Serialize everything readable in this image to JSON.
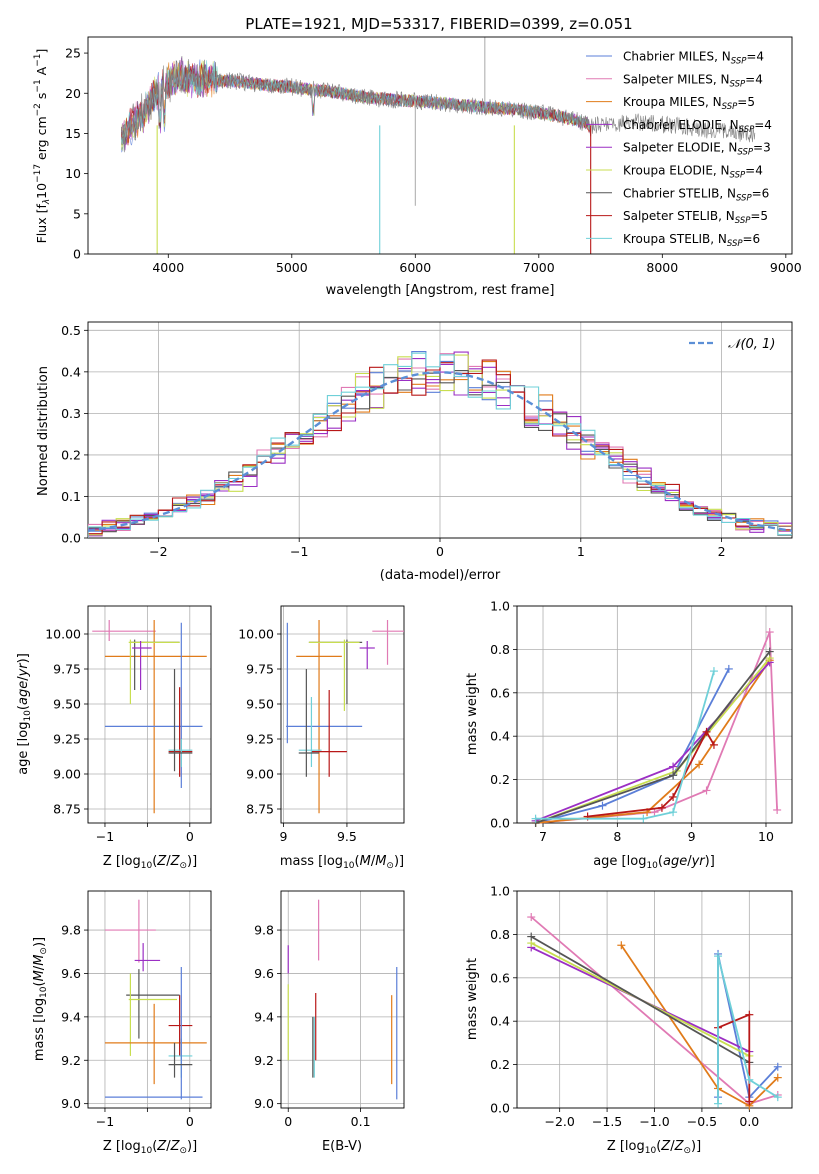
{
  "colors": {
    "Chabrier MILES": "#5b7fd8",
    "Salpeter MILES": "#e07ab4",
    "Kroupa MILES": "#e07b1a",
    "Chabrier ELODIE": "#9b2fc4",
    "Salpeter ELODIE": "#9b2fc4",
    "Kroupa ELODIE": "#c8de50",
    "Chabrier STELIB": "#555555",
    "Salpeter STELIB": "#b81818",
    "Kroupa STELIB": "#6fd0d8",
    "normal": "#5b8fd6"
  },
  "chart_data": [
    {
      "id": "spectrum",
      "type": "line",
      "title": "PLATE=1921, MJD=53317, FIBERID=0399, z=0.051",
      "xlabel": "wavelength [Angstrom, rest frame]",
      "ylabel": "Flux [fλ 10⁻¹⁷ erg cm⁻² s⁻¹ A⁻¹]",
      "xlim": [
        3350,
        9050
      ],
      "ylim": [
        0,
        27
      ],
      "xticks": [
        4000,
        5000,
        6000,
        7000,
        8000,
        9000
      ],
      "yticks": [
        0,
        5,
        10,
        15,
        20,
        25
      ],
      "grid": false,
      "legend_position": "top-right",
      "series": [
        {
          "name": "Chabrier MILES, N_SSP=4",
          "key": "Chabrier MILES"
        },
        {
          "name": "Salpeter MILES, N_SSP=4",
          "key": "Salpeter MILES"
        },
        {
          "name": "Kroupa MILES, N_SSP=5",
          "key": "Kroupa MILES"
        },
        {
          "name": "Chabrier ELODIE, N_SSP=4",
          "key": "Chabrier ELODIE"
        },
        {
          "name": "Salpeter ELODIE, N_SSP=3",
          "key": "Salpeter ELODIE"
        },
        {
          "name": "Kroupa ELODIE, N_SSP=4",
          "key": "Kroupa ELODIE"
        },
        {
          "name": "Chabrier STELIB, N_SSP=6",
          "key": "Chabrier STELIB"
        },
        {
          "name": "Salpeter STELIB, N_SSP=5",
          "key": "Salpeter STELIB"
        },
        {
          "name": "Kroupa STELIB, N_SSP=6",
          "key": "Kroupa STELIB"
        }
      ],
      "continuum": {
        "x": [
          3620,
          3700,
          3800,
          3900,
          4000,
          4100,
          4200,
          4400,
          4600,
          4800,
          5000,
          5200,
          5400,
          5600,
          5800,
          6000,
          6200,
          6400,
          6600,
          6800,
          7000,
          7200,
          7400,
          7420
        ],
        "y": [
          14.5,
          16.0,
          17.5,
          20.0,
          21.5,
          22.0,
          21.8,
          21.6,
          21.4,
          21.0,
          20.8,
          20.4,
          20.0,
          19.5,
          19.2,
          19.0,
          18.8,
          18.5,
          18.2,
          18.0,
          17.6,
          17.0,
          16.2,
          15.2
        ]
      },
      "data_extension": {
        "x": [
          7420,
          7800,
          8200,
          8600,
          8750
        ],
        "y": [
          16.0,
          16.4,
          15.8,
          15.0,
          14.8
        ]
      },
      "drops": [
        {
          "x": 3910,
          "y": 0,
          "key": "Kroupa ELODIE"
        },
        {
          "x": 5712,
          "y": 0,
          "key": "Kroupa STELIB"
        },
        {
          "x": 6802,
          "y": 0,
          "key": "Kroupa ELODIE"
        },
        {
          "x": 7420,
          "y": 0,
          "key": "Salpeter STELIB"
        }
      ],
      "spikes": [
        {
          "x": 6000,
          "y": 6
        },
        {
          "x": 6563,
          "y": 27
        }
      ]
    },
    {
      "id": "residuals",
      "type": "line",
      "xlabel": "(data-model)/error",
      "ylabel": "Normed distribution",
      "xlim": [
        -2.5,
        2.5
      ],
      "ylim": [
        0,
        0.52
      ],
      "xticks": [
        -2,
        -1,
        0,
        1,
        2
      ],
      "yticks": [
        0.0,
        0.1,
        0.2,
        0.3,
        0.4,
        0.5
      ],
      "grid": true,
      "legend_position": "top-right",
      "normal_label": "𝒩(0, 1)",
      "hist_bins": [
        -2.5,
        2.5,
        50
      ]
    },
    {
      "id": "age-vs-z",
      "type": "scatter",
      "xlabel": "Z [log₁₀(Z/Z⊙)]",
      "ylabel": "age  [log₁₀(age/yr)]",
      "xlim": [
        -1.2,
        0.25
      ],
      "ylim": [
        8.65,
        10.2
      ],
      "xticks": [
        -1,
        -0.5,
        0
      ],
      "xticklabels": [
        "−1",
        "",
        "0"
      ],
      "yticks": [
        8.75,
        9.0,
        9.25,
        9.5,
        9.75,
        10.0
      ],
      "grid": true
    },
    {
      "id": "age-vs-mass",
      "type": "scatter",
      "xlabel": "mass [log₁₀(M/M⊙)]",
      "xlim": [
        8.98,
        9.95
      ],
      "ylim": [
        8.65,
        10.2
      ],
      "xticks": [
        9.0,
        9.5
      ],
      "yticks": [
        8.75,
        9.0,
        9.25,
        9.5,
        9.75,
        10.0
      ],
      "grid": true
    },
    {
      "id": "weight-vs-age",
      "type": "line",
      "xlabel": "age  [log₁₀(age/yr)]",
      "ylabel": "mass weight",
      "xlim": [
        6.65,
        10.35
      ],
      "ylim": [
        0,
        1.0
      ],
      "xticks": [
        7,
        8,
        9,
        10
      ],
      "yticks": [
        0.0,
        0.2,
        0.4,
        0.6,
        0.8,
        1.0
      ],
      "grid": true,
      "series": [
        {
          "key": "Chabrier MILES",
          "x": [
            6.9,
            7.8,
            8.75,
            9.5
          ],
          "y": [
            0.0,
            0.08,
            0.22,
            0.71
          ]
        },
        {
          "key": "Salpeter MILES",
          "x": [
            6.9,
            8.5,
            9.2,
            10.05,
            10.15
          ],
          "y": [
            0.0,
            0.05,
            0.15,
            0.88,
            0.06
          ]
        },
        {
          "key": "Kroupa MILES",
          "x": [
            6.9,
            8.4,
            9.1,
            10.05
          ],
          "y": [
            0.0,
            0.05,
            0.27,
            0.75
          ]
        },
        {
          "key": "Chabrier ELODIE",
          "x": [
            6.9,
            8.75,
            10.05
          ],
          "y": [
            0.01,
            0.26,
            0.74
          ]
        },
        {
          "key": "Kroupa ELODIE",
          "x": [
            6.9,
            8.8,
            10.05
          ],
          "y": [
            0.0,
            0.24,
            0.76
          ]
        },
        {
          "key": "Chabrier STELIB",
          "x": [
            6.9,
            8.75,
            10.05
          ],
          "y": [
            0.0,
            0.22,
            0.79
          ]
        },
        {
          "key": "Salpeter STELIB",
          "x": [
            7.6,
            8.6,
            8.75,
            9.2,
            9.3
          ],
          "y": [
            0.03,
            0.07,
            0.12,
            0.42,
            0.36
          ]
        },
        {
          "key": "Kroupa STELIB",
          "x": [
            6.9,
            8.35,
            8.75,
            9.3
          ],
          "y": [
            0.02,
            0.02,
            0.05,
            0.7
          ]
        }
      ]
    },
    {
      "id": "mass-vs-z",
      "type": "scatter",
      "xlabel": "Z [log₁₀(Z/Z⊙)]",
      "ylabel": "mass [log₁₀(M/M⊙)]",
      "xlim": [
        -1.2,
        0.25
      ],
      "ylim": [
        8.98,
        9.98
      ],
      "xticks": [
        -1,
        -0.5,
        0
      ],
      "xticklabels": [
        "−1",
        "",
        "0"
      ],
      "yticks": [
        9.0,
        9.2,
        9.4,
        9.6,
        9.8
      ],
      "grid": true
    },
    {
      "id": "mass-vs-ebv",
      "type": "scatter",
      "xlabel": "E(B-V)",
      "xlim": [
        -0.01,
        0.16
      ],
      "ylim": [
        8.98,
        9.98
      ],
      "xticks": [
        0.0,
        0.1
      ],
      "yticks": [
        9.0,
        9.2,
        9.4,
        9.6,
        9.8
      ],
      "grid": true
    },
    {
      "id": "weight-vs-z",
      "type": "line",
      "xlabel": "Z [log₁₀(Z/Z⊙)]",
      "ylabel": "mass weight",
      "xlim": [
        -2.45,
        0.45
      ],
      "ylim": [
        0,
        1.0
      ],
      "xticks": [
        -2.0,
        -1.5,
        -1.0,
        -0.5,
        0.0
      ],
      "yticks": [
        0.0,
        0.2,
        0.4,
        0.6,
        0.8,
        1.0
      ],
      "grid": true,
      "series": [
        {
          "key": "Chabrier MILES",
          "x": [
            -0.33,
            -0.33,
            0.0,
            0.3
          ],
          "y": [
            0.05,
            0.71,
            0.05,
            0.19
          ]
        },
        {
          "key": "Salpeter MILES",
          "x": [
            -2.3,
            0.0,
            0.3
          ],
          "y": [
            0.88,
            0.02,
            0.06
          ]
        },
        {
          "key": "Kroupa MILES",
          "x": [
            -1.35,
            -0.33,
            0.0,
            0.3
          ],
          "y": [
            0.75,
            0.09,
            0.01,
            0.14
          ]
        },
        {
          "key": "Chabrier ELODIE",
          "x": [
            -2.3,
            0.0
          ],
          "y": [
            0.74,
            0.26
          ]
        },
        {
          "key": "Kroupa ELODIE",
          "x": [
            -2.3,
            0.0
          ],
          "y": [
            0.76,
            0.24
          ]
        },
        {
          "key": "Chabrier STELIB",
          "x": [
            -2.3,
            0.0
          ],
          "y": [
            0.79,
            0.21
          ]
        },
        {
          "key": "Salpeter STELIB",
          "x": [
            -0.33,
            0.0,
            0.0
          ],
          "y": [
            0.37,
            0.43,
            0.03
          ]
        },
        {
          "key": "Kroupa STELIB",
          "x": [
            -0.33,
            -0.33,
            0.0,
            0.3
          ],
          "y": [
            0.02,
            0.7,
            0.13,
            0.05
          ]
        }
      ]
    }
  ],
  "crosses_age_z": [
    {
      "key": "Salpeter MILES",
      "x": -0.95,
      "y": 10.02,
      "xlo": -1.15,
      "xhi": -0.4,
      "ylo": 9.95,
      "yhi": 10.1
    },
    {
      "key": "Kroupa MILES",
      "x": -0.42,
      "y": 9.84,
      "xlo": -1.0,
      "xhi": 0.2,
      "ylo": 8.72,
      "yhi": 10.1
    },
    {
      "key": "Chabrier MILES",
      "x": -0.1,
      "y": 9.34,
      "xlo": -1.0,
      "xhi": 0.15,
      "ylo": 8.9,
      "yhi": 10.08
    },
    {
      "key": "Chabrier STELIB",
      "x": -0.65,
      "y": 9.94,
      "xlo": -0.7,
      "xhi": -0.12,
      "ylo": 9.6,
      "yhi": 9.96
    },
    {
      "key": "Kroupa ELODIE",
      "x": -0.7,
      "y": 9.94,
      "xlo": -0.72,
      "xhi": -0.12,
      "ylo": 9.5,
      "yhi": 9.96
    },
    {
      "key": "Chabrier ELODIE",
      "x": -0.58,
      "y": 9.9,
      "xlo": -0.68,
      "xhi": -0.45,
      "ylo": 9.6,
      "yhi": 9.95
    },
    {
      "key": "Salpeter STELIB",
      "x": -0.12,
      "y": 9.16,
      "xlo": -0.25,
      "xhi": 0.03,
      "ylo": 8.98,
      "yhi": 9.62
    },
    {
      "key": "Kroupa STELIB",
      "x": -0.1,
      "y": 9.17,
      "xlo": -0.25,
      "xhi": 0.03,
      "ylo": 9.05,
      "yhi": 9.25
    },
    {
      "key": "Chabrier STELIB",
      "x": -0.18,
      "y": 9.15,
      "xlo": -0.25,
      "xhi": 0.03,
      "ylo": 9.02,
      "yhi": 9.75
    }
  ],
  "crosses_age_mass": [
    {
      "key": "Salpeter MILES",
      "x": 9.82,
      "y": 10.02,
      "xlo": 9.7,
      "xhi": 9.95,
      "ylo": 9.78,
      "yhi": 10.1
    },
    {
      "key": "Kroupa MILES",
      "x": 9.28,
      "y": 9.84,
      "xlo": 9.1,
      "xhi": 9.46,
      "ylo": 8.72,
      "yhi": 10.1
    },
    {
      "key": "Chabrier MILES",
      "x": 9.03,
      "y": 9.34,
      "xlo": 9.02,
      "xhi": 9.62,
      "ylo": 9.22,
      "yhi": 10.08
    },
    {
      "key": "Chabrier STELIB",
      "x": 9.5,
      "y": 9.94,
      "xlo": 9.2,
      "xhi": 9.62,
      "ylo": 9.5,
      "yhi": 9.96
    },
    {
      "key": "Kroupa ELODIE",
      "x": 9.48,
      "y": 9.94,
      "xlo": 9.2,
      "xhi": 9.6,
      "ylo": 9.45,
      "yhi": 9.96
    },
    {
      "key": "Chabrier ELODIE",
      "x": 9.66,
      "y": 9.9,
      "xlo": 9.6,
      "xhi": 9.72,
      "ylo": 9.75,
      "yhi": 9.95
    },
    {
      "key": "Salpeter STELIB",
      "x": 9.36,
      "y": 9.16,
      "xlo": 9.22,
      "xhi": 9.5,
      "ylo": 8.98,
      "yhi": 9.6
    },
    {
      "key": "Kroupa STELIB",
      "x": 9.22,
      "y": 9.17,
      "xlo": 9.12,
      "xhi": 9.3,
      "ylo": 9.05,
      "yhi": 9.55
    },
    {
      "key": "Chabrier STELIB",
      "x": 9.18,
      "y": 9.15,
      "xlo": 9.12,
      "xhi": 9.28,
      "ylo": 8.98,
      "yhi": 9.75
    }
  ],
  "crosses_mass_z": [
    {
      "key": "Salpeter MILES",
      "x": -0.6,
      "y": 9.8,
      "xlo": -1.0,
      "xhi": -0.4,
      "ylo": 9.65,
      "yhi": 9.94
    },
    {
      "key": "Chabrier ELODIE",
      "x": -0.55,
      "y": 9.66,
      "xlo": -0.65,
      "xhi": -0.35,
      "ylo": 9.61,
      "yhi": 9.74
    },
    {
      "key": "Chabrier STELIB",
      "x": -0.6,
      "y": 9.5,
      "xlo": -0.75,
      "xhi": -0.12,
      "ylo": 9.3,
      "yhi": 9.62
    },
    {
      "key": "Kroupa ELODIE",
      "x": -0.7,
      "y": 9.48,
      "xlo": -0.72,
      "xhi": -0.15,
      "ylo": 9.22,
      "yhi": 9.6
    },
    {
      "key": "Kroupa MILES",
      "x": -0.42,
      "y": 9.28,
      "xlo": -1.0,
      "xhi": 0.2,
      "ylo": 9.09,
      "yhi": 9.46
    },
    {
      "key": "Salpeter STELIB",
      "x": -0.12,
      "y": 9.36,
      "xlo": -0.25,
      "xhi": 0.03,
      "ylo": 9.22,
      "yhi": 9.5
    },
    {
      "key": "Kroupa STELIB",
      "x": -0.1,
      "y": 9.22,
      "xlo": -0.25,
      "xhi": 0.03,
      "ylo": 9.12,
      "yhi": 9.3
    },
    {
      "key": "Chabrier MILES",
      "x": -0.1,
      "y": 9.03,
      "xlo": -1.0,
      "xhi": 0.15,
      "ylo": 9.02,
      "yhi": 9.63
    },
    {
      "key": "Chabrier STELIB",
      "x": -0.18,
      "y": 9.18,
      "xlo": -0.25,
      "xhi": 0.03,
      "ylo": 9.12,
      "yhi": 9.28
    }
  ],
  "crosses_mass_ebv": [
    {
      "key": "Chabrier ELODIE",
      "x": 0.0,
      "y": 9.66,
      "xlo": 0.0,
      "xhi": 0.0,
      "ylo": 9.6,
      "yhi": 9.73
    },
    {
      "key": "Kroupa ELODIE",
      "x": 0.0,
      "y": 9.4,
      "xlo": 0.0,
      "xhi": 0.0,
      "ylo": 9.2,
      "yhi": 9.55
    },
    {
      "key": "Salpeter MILES",
      "x": 0.042,
      "y": 9.8,
      "xlo": 0.042,
      "xhi": 0.042,
      "ylo": 9.66,
      "yhi": 9.94
    },
    {
      "key": "Salpeter STELIB",
      "x": 0.038,
      "y": 9.36,
      "xlo": 0.038,
      "xhi": 0.038,
      "ylo": 9.2,
      "yhi": 9.51
    },
    {
      "key": "Chabrier STELIB",
      "x": 0.034,
      "y": 9.26,
      "xlo": 0.034,
      "xhi": 0.034,
      "ylo": 9.12,
      "yhi": 9.4
    },
    {
      "key": "Kroupa STELIB",
      "x": 0.036,
      "y": 9.3,
      "xlo": 0.036,
      "xhi": 0.036,
      "ylo": 9.12,
      "yhi": 9.4
    },
    {
      "key": "Kroupa MILES",
      "x": 0.143,
      "y": 9.28,
      "xlo": 0.143,
      "xhi": 0.143,
      "ylo": 9.09,
      "yhi": 9.5
    },
    {
      "key": "Chabrier MILES",
      "x": 0.15,
      "y": 9.3,
      "xlo": 0.15,
      "xhi": 0.15,
      "ylo": 9.02,
      "yhi": 9.63
    }
  ]
}
